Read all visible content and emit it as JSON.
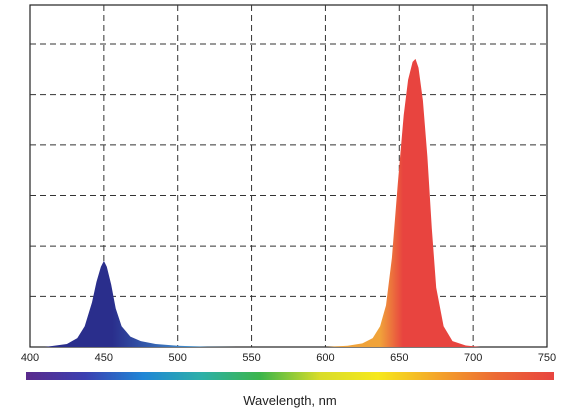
{
  "chart_data": {
    "type": "area",
    "title": "",
    "xlabel": "Wavelength, nm",
    "ylabel": "",
    "xlim": [
      400,
      750
    ],
    "ylim": [
      0,
      1
    ],
    "grid": true,
    "x_ticks": [
      400,
      450,
      500,
      550,
      600,
      650,
      700,
      750
    ],
    "y_gridlines": [
      0.167,
      0.333,
      0.5,
      0.667,
      0.833,
      1.0
    ],
    "series": [
      {
        "color_from": "#2a2e8c",
        "color_to": "#7bb9e0",
        "points": [
          [
            410,
            0
          ],
          [
            425,
            0.01
          ],
          [
            432,
            0.03
          ],
          [
            437,
            0.07
          ],
          [
            442,
            0.15
          ],
          [
            445,
            0.22
          ],
          [
            448,
            0.27
          ],
          [
            450,
            0.29
          ],
          [
            452,
            0.27
          ],
          [
            455,
            0.21
          ],
          [
            458,
            0.13
          ],
          [
            462,
            0.07
          ],
          [
            468,
            0.035
          ],
          [
            475,
            0.02
          ],
          [
            485,
            0.01
          ],
          [
            500,
            0.004
          ],
          [
            520,
            0.001
          ],
          [
            540,
            0
          ]
        ]
      },
      {
        "color_from": "#f0a33a",
        "color_to": "#e8443f",
        "points": [
          [
            600,
            0
          ],
          [
            615,
            0.004
          ],
          [
            625,
            0.012
          ],
          [
            632,
            0.03
          ],
          [
            637,
            0.07
          ],
          [
            641,
            0.14
          ],
          [
            645,
            0.3
          ],
          [
            649,
            0.55
          ],
          [
            653,
            0.78
          ],
          [
            656,
            0.9
          ],
          [
            659,
            0.96
          ],
          [
            661,
            0.97
          ],
          [
            663,
            0.94
          ],
          [
            666,
            0.83
          ],
          [
            669,
            0.64
          ],
          [
            672,
            0.4
          ],
          [
            675,
            0.2
          ],
          [
            680,
            0.07
          ],
          [
            686,
            0.02
          ],
          [
            695,
            0.005
          ],
          [
            705,
            0
          ]
        ]
      }
    ],
    "colorbar": {
      "stops": [
        "#5a2a8c",
        "#3b3fb0",
        "#1f86d6",
        "#2db0a8",
        "#3cb54a",
        "#d8dc2a",
        "#f6e81c",
        "#f4a52a",
        "#ec6a34",
        "#e8443f"
      ]
    }
  }
}
